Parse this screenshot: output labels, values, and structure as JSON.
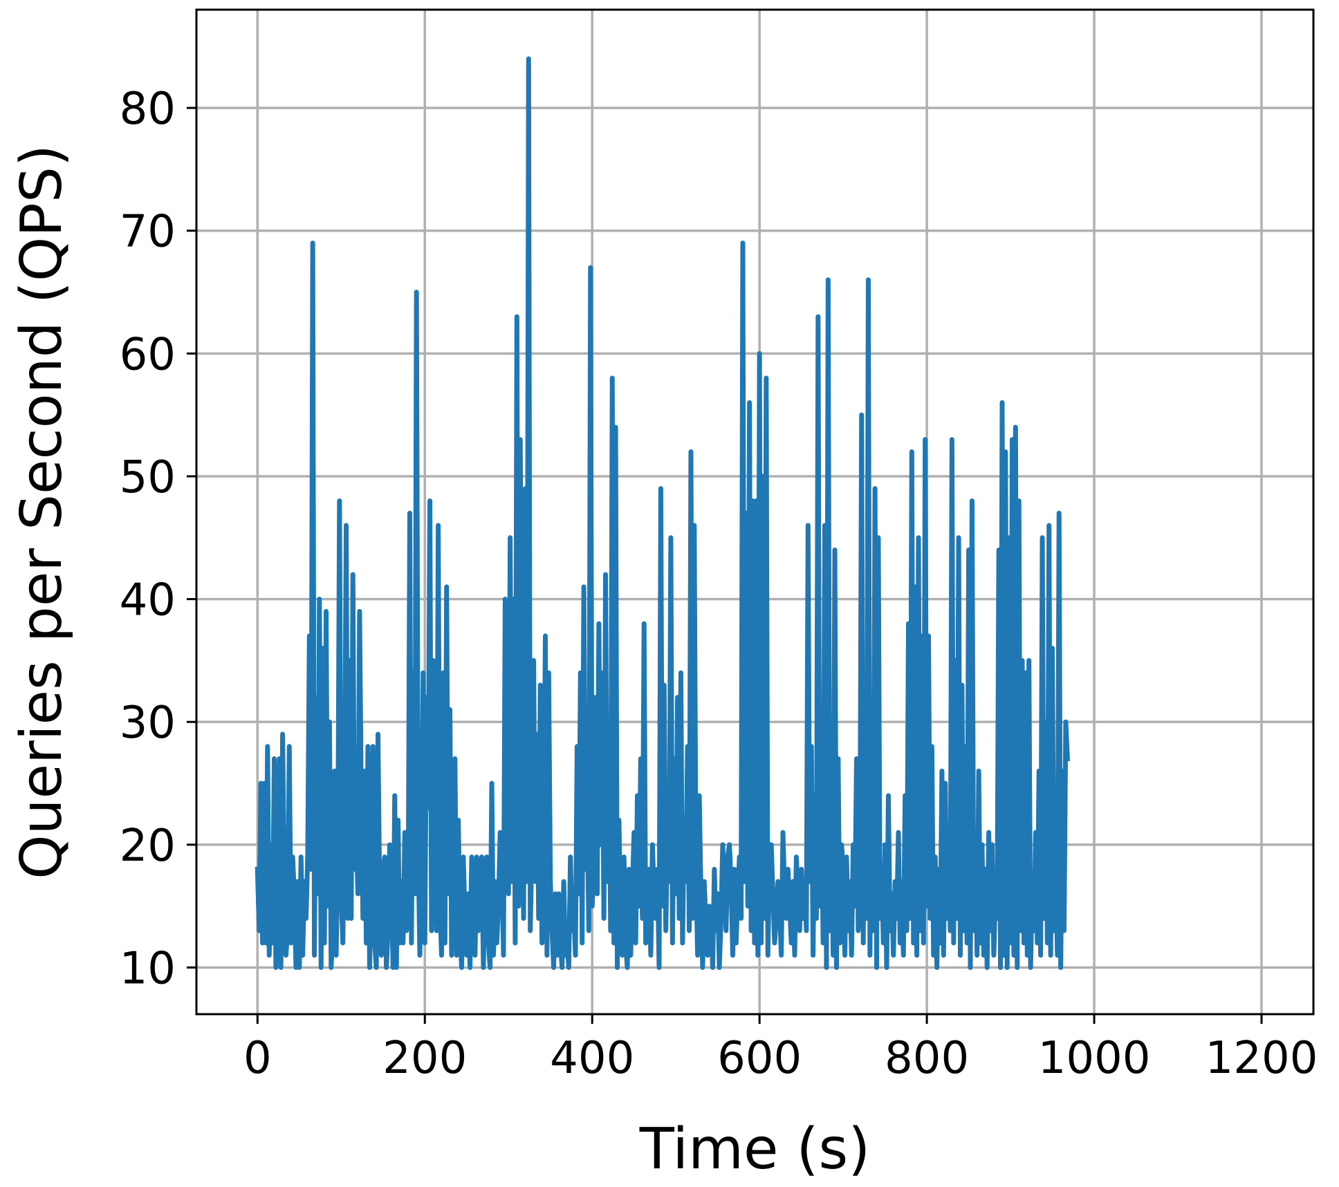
{
  "chart_data": {
    "type": "line",
    "title": "",
    "xlabel": "Time (s)",
    "ylabel": "Queries per Second (QPS)",
    "xlim": [
      -73,
      1262
    ],
    "ylim": [
      6.2,
      88.0
    ],
    "grid": true,
    "legend": "none",
    "line_color": "#1f77b4",
    "x_ticks": [
      0,
      200,
      400,
      600,
      800,
      1000,
      1200
    ],
    "x_tick_labels": [
      "0",
      "200",
      "400",
      "600",
      "800",
      "1000",
      "1200"
    ],
    "y_ticks": [
      10,
      20,
      30,
      40,
      50,
      60,
      70,
      80
    ],
    "y_tick_labels": [
      "10",
      "20",
      "30",
      "40",
      "50",
      "60",
      "70",
      "80"
    ],
    "series": [
      {
        "step_seconds": 2,
        "values": [
          18,
          13,
          25,
          12,
          25,
          12,
          28,
          11,
          20,
          12,
          27,
          10,
          16,
          27,
          10,
          29,
          17,
          11,
          13,
          28,
          12,
          19,
          16,
          10,
          17,
          10,
          19,
          11,
          17,
          14,
          19,
          37,
          18,
          69,
          11,
          32,
          16,
          40,
          10,
          36,
          12,
          39,
          15,
          30,
          10,
          13,
          26,
          11,
          19,
          48,
          16,
          12,
          22,
          46,
          14,
          35,
          14,
          42,
          18,
          21,
          16,
          39,
          24,
          14,
          26,
          12,
          28,
          10,
          17,
          28,
          12,
          10,
          29,
          16,
          11,
          18,
          19,
          10,
          13,
          20,
          17,
          10,
          24,
          10,
          22,
          12,
          17,
          12,
          21,
          13,
          14,
          47,
          12,
          34,
          16,
          65,
          20,
          11,
          18,
          34,
          12,
          32,
          23,
          48,
          13,
          35,
          24,
          13,
          46,
          15,
          11,
          34,
          12,
          41,
          16,
          31,
          11,
          21,
          27,
          11,
          22,
          13,
          10,
          19,
          14,
          11,
          16,
          10,
          19,
          13,
          11,
          19,
          13,
          17,
          19,
          10,
          18,
          19,
          12,
          10,
          25,
          11,
          17,
          12,
          15,
          21,
          19,
          11,
          40,
          35,
          16,
          45,
          17,
          40,
          12,
          63,
          15,
          53,
          34,
          14,
          49,
          17,
          84,
          13,
          20,
          35,
          17,
          29,
          14,
          33,
          12,
          18,
          37,
          11,
          34,
          17,
          13,
          10,
          16,
          11,
          16,
          12,
          10,
          17,
          11,
          12,
          10,
          19,
          13,
          15,
          11,
          28,
          16,
          34,
          12,
          41,
          18,
          23,
          13,
          67,
          15,
          18,
          32,
          16,
          38,
          20,
          34,
          14,
          42,
          17,
          30,
          13,
          58,
          12,
          54,
          10,
          22,
          13,
          11,
          19,
          12,
          10,
          18,
          11,
          16,
          21,
          12,
          24,
          15,
          27,
          14,
          38,
          12,
          17,
          18,
          11,
          20,
          16,
          14,
          18,
          10,
          49,
          15,
          33,
          13,
          21,
          17,
          45,
          12,
          27,
          16,
          32,
          14,
          34,
          12,
          22,
          17,
          28,
          13,
          52,
          14,
          46,
          18,
          11,
          24,
          16,
          10,
          17,
          13,
          11,
          15,
          14,
          10,
          18,
          13,
          16,
          10,
          14,
          20,
          17,
          13,
          19,
          20,
          17,
          11,
          18,
          12,
          16,
          19,
          14,
          69,
          17,
          47,
          15,
          56,
          13,
          48,
          12,
          48,
          11,
          60,
          12,
          50,
          14,
          58,
          11,
          19,
          20,
          16,
          12,
          14,
          17,
          15,
          11,
          21,
          16,
          14,
          18,
          15,
          12,
          17,
          11,
          19,
          16,
          13,
          18,
          14,
          17,
          13,
          46,
          17,
          28,
          11,
          24,
          14,
          63,
          15,
          25,
          12,
          46,
          10,
          66,
          13,
          21,
          11,
          44,
          10,
          27,
          12,
          20,
          18,
          11,
          19,
          13,
          17,
          11,
          20,
          15,
          27,
          13,
          18,
          55,
          12,
          31,
          14,
          66,
          11,
          29,
          13,
          49,
          10,
          45,
          14,
          18,
          12,
          20,
          10,
          24,
          13,
          16,
          11,
          17,
          14,
          21,
          12,
          17,
          11,
          24,
          13,
          38,
          14,
          52,
          12,
          41,
          11,
          45,
          13,
          37,
          12,
          53,
          15,
          37,
          14,
          28,
          11,
          19,
          10,
          18,
          12,
          26,
          11,
          25,
          14,
          21,
          13,
          53,
          12,
          35,
          14,
          45,
          11,
          33,
          13,
          28,
          12,
          44,
          10,
          48,
          13,
          21,
          11,
          26,
          12,
          20,
          11,
          18,
          10,
          21,
          13,
          20,
          11,
          16,
          14,
          44,
          10,
          56,
          11,
          52,
          10,
          45,
          12,
          53,
          11,
          54,
          10,
          48,
          13,
          35,
          12,
          34,
          11,
          35,
          10,
          17,
          13,
          21,
          12,
          26,
          11,
          45,
          14,
          30,
          12,
          46,
          11,
          36,
          13,
          19,
          11,
          47,
          10,
          26,
          13,
          30,
          27
        ]
      }
    ]
  }
}
